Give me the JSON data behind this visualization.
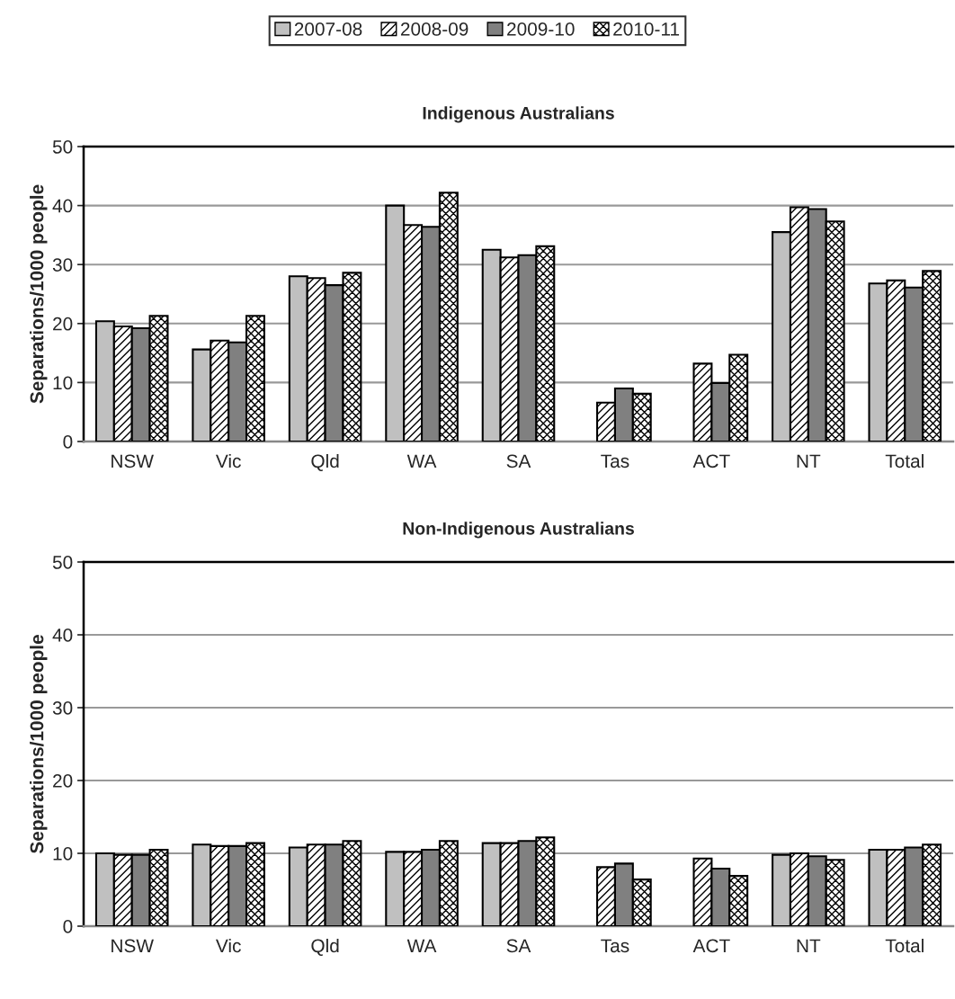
{
  "chart_data": [
    {
      "type": "bar",
      "title": "Indigenous Australians",
      "ylabel": "Separations/1000 people",
      "categories": [
        "NSW",
        "Vic",
        "Qld",
        "WA",
        "SA",
        "Tas",
        "ACT",
        "NT",
        "Total"
      ],
      "ylim": [
        0,
        50
      ],
      "yticks": [
        0,
        10,
        20,
        30,
        40,
        50
      ],
      "grid": "y",
      "legend": "top",
      "series": [
        {
          "name": "2007-08",
          "color": "#c0c0c0",
          "values": [
            20.4,
            15.6,
            28.0,
            40.0,
            32.5,
            null,
            null,
            35.5,
            26.8
          ]
        },
        {
          "name": "2008-09",
          "color": "#000000",
          "values": [
            19.5,
            17.1,
            27.7,
            36.7,
            31.2,
            6.6,
            13.2,
            39.7,
            27.3
          ]
        },
        {
          "name": "2009-10",
          "color": "#808080",
          "values": [
            19.2,
            16.8,
            26.5,
            36.4,
            31.6,
            9.0,
            9.9,
            39.4,
            26.1
          ]
        },
        {
          "name": "2010-11",
          "color": "#000000",
          "values": [
            21.3,
            21.3,
            28.6,
            42.2,
            33.1,
            8.1,
            14.7,
            37.3,
            28.9
          ]
        }
      ]
    },
    {
      "type": "bar",
      "title": "Non-Indigenous Australians",
      "ylabel": "Separations/1000 people",
      "categories": [
        "NSW",
        "Vic",
        "Qld",
        "WA",
        "SA",
        "Tas",
        "ACT",
        "NT",
        "Total"
      ],
      "ylim": [
        0,
        50
      ],
      "yticks": [
        0,
        10,
        20,
        30,
        40,
        50
      ],
      "grid": "y",
      "series": [
        {
          "color": "#c0c0c0",
          "values": [
            10.0,
            11.2,
            10.8,
            10.2,
            11.4,
            null,
            null,
            9.8,
            10.5
          ]
        },
        {
          "color": "#000000",
          "values": [
            9.8,
            11.0,
            11.2,
            10.2,
            11.4,
            8.1,
            9.3,
            10.0,
            10.5
          ]
        },
        {
          "color": "#808080",
          "values": [
            9.8,
            11.0,
            11.2,
            10.5,
            11.7,
            8.6,
            7.9,
            9.6,
            10.8
          ]
        },
        {
          "color": "#000000",
          "values": [
            10.5,
            11.4,
            11.7,
            11.7,
            12.2,
            6.4,
            6.9,
            9.1,
            11.2
          ]
        }
      ]
    }
  ]
}
